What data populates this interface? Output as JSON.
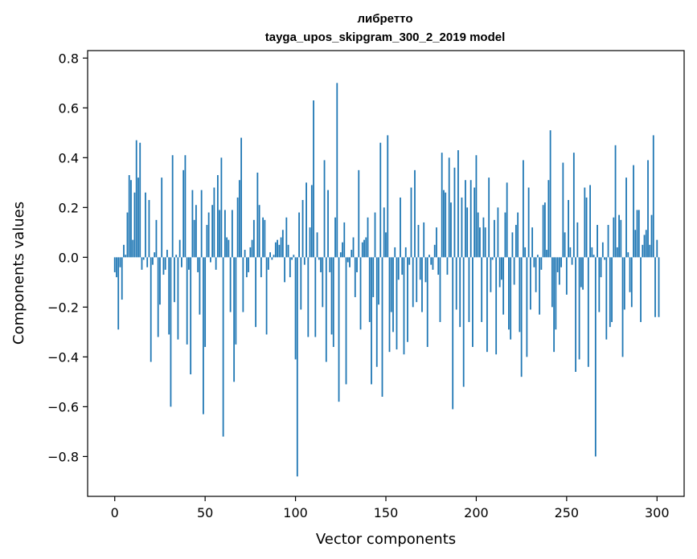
{
  "chart_data": {
    "type": "bar",
    "title": "либретто",
    "subtitle": "tayga_upos_skipgram_300_2_2019 model",
    "xlabel": "Vector components",
    "ylabel": "Components values",
    "xlim": [
      -15,
      315
    ],
    "ylim": [
      -0.96,
      0.83
    ],
    "xticks": [
      0,
      50,
      100,
      150,
      200,
      250,
      300
    ],
    "yticks": [
      -0.8,
      -0.6,
      -0.4,
      -0.2,
      0.0,
      0.2,
      0.4,
      0.6,
      0.8
    ],
    "xtick_labels": [
      "0",
      "50",
      "100",
      "150",
      "200",
      "250",
      "300"
    ],
    "ytick_labels": [
      "−0.8",
      "−0.6",
      "−0.4",
      "−0.2",
      "0.0",
      "0.2",
      "0.4",
      "0.6",
      "0.8"
    ],
    "bar_color": "#1f77b4",
    "grid": false,
    "legend": "none",
    "values": [
      -0.06,
      -0.08,
      -0.29,
      -0.04,
      -0.17,
      0.05,
      0.01,
      0.18,
      0.33,
      0.31,
      0.07,
      0.26,
      0.47,
      0.32,
      0.46,
      -0.05,
      -0.01,
      0.26,
      -0.04,
      0.23,
      -0.42,
      -0.03,
      0.02,
      0.15,
      -0.32,
      -0.19,
      0.32,
      -0.07,
      -0.05,
      0.03,
      -0.31,
      -0.6,
      0.41,
      -0.18,
      0.01,
      -0.33,
      0.07,
      -0.04,
      0.35,
      0.41,
      -0.35,
      -0.05,
      -0.47,
      0.27,
      0.15,
      0.21,
      -0.06,
      -0.23,
      0.27,
      -0.63,
      -0.36,
      0.13,
      0.18,
      -0.02,
      0.21,
      0.28,
      -0.05,
      0.33,
      0.19,
      0.4,
      -0.72,
      0.19,
      0.08,
      0.07,
      -0.22,
      0.19,
      -0.5,
      -0.35,
      0.24,
      0.31,
      0.48,
      -0.22,
      0.03,
      -0.08,
      -0.06,
      0.04,
      0.07,
      0.15,
      -0.28,
      0.34,
      0.21,
      -0.08,
      0.16,
      0.15,
      -0.31,
      -0.05,
      0.02,
      -0.01,
      0.01,
      0.06,
      0.07,
      0.05,
      0.08,
      0.11,
      -0.1,
      0.16,
      0.05,
      -0.08,
      -0.01,
      0.01,
      -0.41,
      -0.88,
      0.18,
      -0.21,
      0.23,
      -0.03,
      0.3,
      -0.32,
      0.12,
      0.29,
      0.63,
      -0.32,
      0.1,
      -0.01,
      -0.06,
      -0.2,
      0.39,
      -0.42,
      0.27,
      -0.06,
      -0.31,
      -0.36,
      0.16,
      0.7,
      -0.58,
      0.02,
      0.06,
      0.14,
      -0.51,
      -0.02,
      -0.04,
      0.03,
      0.08,
      -0.16,
      -0.06,
      0.35,
      -0.29,
      0.06,
      0.07,
      0.08,
      0.16,
      -0.26,
      -0.51,
      -0.16,
      0.18,
      -0.44,
      -0.19,
      0.46,
      -0.56,
      0.2,
      0.1,
      0.49,
      -0.38,
      -0.22,
      -0.3,
      0.04,
      -0.37,
      -0.09,
      0.24,
      -0.07,
      -0.39,
      0.04,
      -0.34,
      -0.03,
      0.28,
      -0.2,
      0.35,
      -0.18,
      0.13,
      -0.09,
      -0.22,
      0.14,
      -0.1,
      -0.36,
      0.01,
      -0.03,
      -0.05,
      0.05,
      0.12,
      -0.07,
      -0.26,
      0.42,
      0.27,
      0.26,
      -0.07,
      0.4,
      0.22,
      -0.61,
      0.36,
      -0.21,
      0.43,
      -0.28,
      0.24,
      -0.52,
      0.31,
      0.2,
      -0.26,
      0.31,
      -0.36,
      0.28,
      0.41,
      0.18,
      0.12,
      -0.26,
      0.16,
      0.12,
      -0.38,
      0.32,
      -0.14,
      -0.01,
      0.15,
      -0.39,
      0.2,
      -0.12,
      -0.09,
      -0.23,
      0.18,
      0.3,
      -0.29,
      -0.33,
      0.1,
      -0.11,
      0.13,
      0.18,
      -0.3,
      -0.48,
      0.39,
      0.04,
      -0.4,
      0.28,
      -0.21,
      0.12,
      -0.04,
      -0.14,
      0.01,
      -0.23,
      -0.05,
      0.21,
      0.22,
      0.03,
      0.31,
      0.51,
      -0.2,
      -0.38,
      -0.29,
      -0.06,
      -0.11,
      -0.04,
      0.38,
      0.1,
      -0.15,
      0.23,
      0.04,
      -0.03,
      0.42,
      -0.46,
      0.14,
      -0.41,
      -0.12,
      -0.13,
      0.28,
      0.24,
      -0.44,
      0.29,
      0.04,
      0.01,
      -0.8,
      0.13,
      -0.22,
      -0.08,
      0.06,
      -0.01,
      -0.33,
      0.13,
      -0.28,
      -0.26,
      0.16,
      0.45,
      0.04,
      0.17,
      0.15,
      -0.4,
      -0.21,
      0.32,
      0.02,
      -0.14,
      -0.2,
      0.37,
      0.11,
      0.19,
      0.19,
      -0.26,
      0.05,
      0.09,
      0.11,
      0.39,
      0.05,
      0.17,
      0.49,
      -0.24,
      0.07,
      -0.24
    ]
  }
}
